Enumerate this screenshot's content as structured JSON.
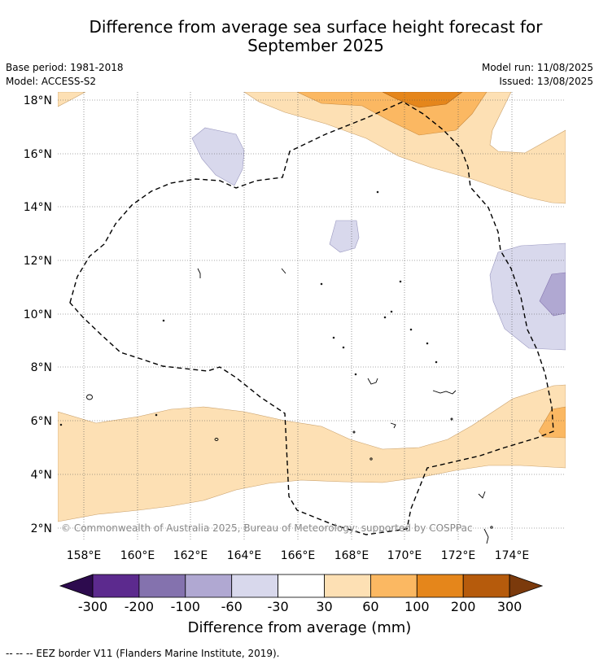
{
  "title": {
    "line1": "Difference from average sea surface height forecast for",
    "line2": "September 2025"
  },
  "meta": {
    "base_period": "Base period: 1981-2018",
    "model": "Model: ACCESS-S2",
    "model_run": "Model run: 11/08/2025",
    "issued": "Issued: 13/08/2025"
  },
  "map": {
    "latitude_labels": [
      "18°N",
      "16°N",
      "14°N",
      "12°N",
      "10°N",
      "8°N",
      "6°N",
      "4°N",
      "2°N"
    ],
    "longitude_labels": [
      "158°E",
      "160°E",
      "162°E",
      "164°E",
      "166°E",
      "168°E",
      "170°E",
      "172°E",
      "174°E"
    ],
    "copyright": "© Commonwealth of Australia 2025, Bureau of Meteorology; supported by COSPPac"
  },
  "colorbar": {
    "labels": [
      "-300",
      "-200",
      "-100",
      "-60",
      "-30",
      "30",
      "60",
      "100",
      "200",
      "300"
    ],
    "colors": [
      "#2d0b4e",
      "#5c2a8e",
      "#8472ae",
      "#b0a8d2",
      "#d8d8ec",
      "#ffffff",
      "#fde0b4",
      "#fbb862",
      "#e5861b",
      "#b65b0c",
      "#7b3a0c"
    ],
    "title": "Difference from average (mm)"
  },
  "footnote": "--  --  -- EEZ border V11 (Flanders Marine Institute, 2019).",
  "colors": {
    "tan_light": "#fde0b4",
    "orange_mid": "#fbb862",
    "orange_dark": "#e5861b",
    "lav_light": "#d8d8ec",
    "lav_mid": "#b0a8d2"
  }
}
